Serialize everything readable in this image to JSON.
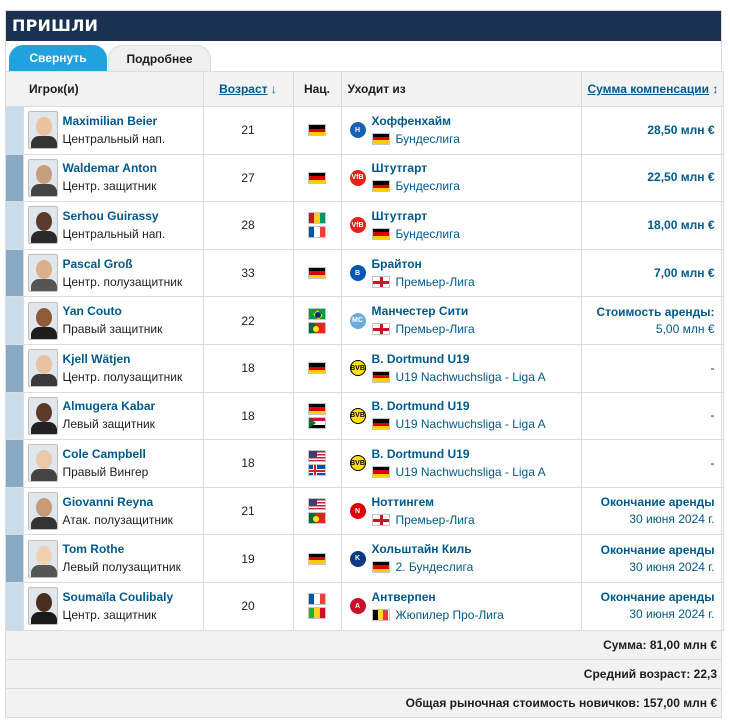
{
  "header": {
    "title": "ПРИШЛИ"
  },
  "tabs": [
    {
      "label": "Свернуть",
      "active": true
    },
    {
      "label": "Подробнее",
      "active": false
    }
  ],
  "columns": {
    "player": "Игрок(и)",
    "age": "Возраст",
    "age_sort_icon": "↓",
    "nat": "Нац.",
    "from": "Уходит из",
    "fee": "Сумма компенсации",
    "fee_sort_icon": "↕"
  },
  "rows": [
    {
      "name": "Maximilian Beier",
      "position": "Центральный нап.",
      "age": "21",
      "flags": [
        "de"
      ],
      "club": "Хоффенхайм",
      "club_crest": "hoffenheim",
      "league_flag": "de",
      "league": "Бундеслига",
      "fee_line1": "28,50 млн €",
      "fee_line2": ""
    },
    {
      "name": "Waldemar Anton",
      "position": "Центр. защитник",
      "age": "27",
      "flags": [
        "de"
      ],
      "club": "Штутгарт",
      "club_crest": "stuttgart",
      "league_flag": "de",
      "league": "Бундеслига",
      "fee_line1": "22,50 млн €",
      "fee_line2": ""
    },
    {
      "name": "Serhou Guirassy",
      "position": "Центральный нап.",
      "age": "28",
      "flags": [
        "gn",
        "fr"
      ],
      "club": "Штутгарт",
      "club_crest": "stuttgart",
      "league_flag": "de",
      "league": "Бундеслига",
      "fee_line1": "18,00 млн €",
      "fee_line2": ""
    },
    {
      "name": "Pascal Groß",
      "position": "Центр. полузащитник",
      "age": "33",
      "flags": [
        "de"
      ],
      "club": "Брайтон",
      "club_crest": "brighton",
      "league_flag": "en",
      "league": "Премьер-Лига",
      "fee_line1": "7,00 млн €",
      "fee_line2": ""
    },
    {
      "name": "Yan Couto",
      "position": "Правый защитник",
      "age": "22",
      "flags": [
        "br",
        "pt"
      ],
      "club": "Манчестер Сити",
      "club_crest": "mancity",
      "league_flag": "en",
      "league": "Премьер-Лига",
      "fee_line1": "Стоимость аренды:",
      "fee_line2": "5,00 млн €"
    },
    {
      "name": "Kjell Wätjen",
      "position": "Центр. полузащитник",
      "age": "18",
      "flags": [
        "de"
      ],
      "club": "B. Dortmund U19",
      "club_crest": "bvb",
      "league_flag": "de",
      "league": "U19 Nachwuchsliga - Liga A",
      "fee_line1": "-",
      "fee_line2": ""
    },
    {
      "name": "Almugera Kabar",
      "position": "Левый защитник",
      "age": "18",
      "flags": [
        "de",
        "sd"
      ],
      "club": "B. Dortmund U19",
      "club_crest": "bvb",
      "league_flag": "de",
      "league": "U19 Nachwuchsliga - Liga A",
      "fee_line1": "-",
      "fee_line2": ""
    },
    {
      "name": "Cole Campbell",
      "position": "Правый Вингер",
      "age": "18",
      "flags": [
        "us",
        "is"
      ],
      "club": "B. Dortmund U19",
      "club_crest": "bvb",
      "league_flag": "de",
      "league": "U19 Nachwuchsliga - Liga A",
      "fee_line1": "-",
      "fee_line2": ""
    },
    {
      "name": "Giovanni Reyna",
      "position": "Атак. полузащитник",
      "age": "21",
      "flags": [
        "us",
        "pt"
      ],
      "club": "Ноттингем",
      "club_crest": "nottingham",
      "league_flag": "en",
      "league": "Премьер-Лига",
      "fee_line1": "Окончание аренды",
      "fee_line2": "30 июня 2024 г."
    },
    {
      "name": "Tom Rothe",
      "position": "Левый полузащитник",
      "age": "19",
      "flags": [
        "de"
      ],
      "club": "Хольштайн Киль",
      "club_crest": "kiel",
      "league_flag": "de",
      "league": "2. Бундеслига",
      "fee_line1": "Окончание аренды",
      "fee_line2": "30 июня 2024 г."
    },
    {
      "name": "Soumaïla Coulibaly",
      "position": "Центр. защитник",
      "age": "20",
      "flags": [
        "fr",
        "ml"
      ],
      "club": "Антверпен",
      "club_crest": "antwerp",
      "league_flag": "be",
      "league": "Жюпилер Про-Лига",
      "fee_line1": "Окончание аренды",
      "fee_line2": "30 июня 2024 г."
    }
  ],
  "summary": {
    "total": "Сумма: 81,00 млн €",
    "avg_age": "Средний возраст: 22,3",
    "market_value": "Общая рыночная стоимость новичков: 157,00 млн €"
  }
}
